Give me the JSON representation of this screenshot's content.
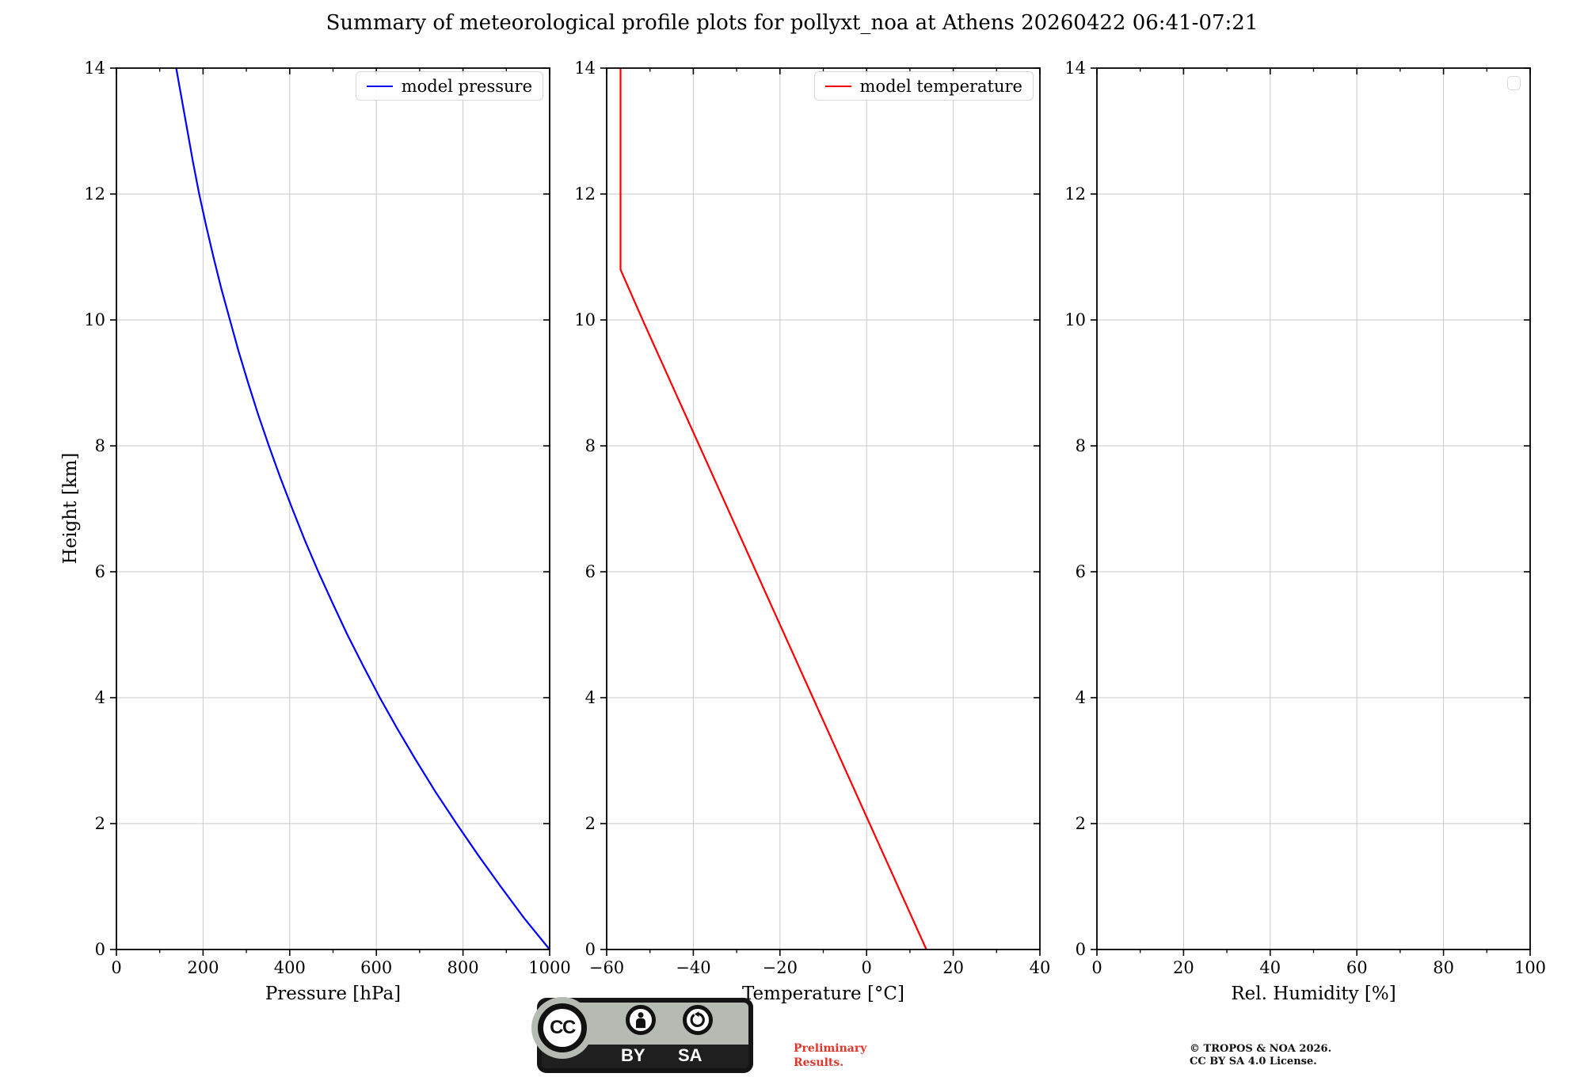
{
  "title": "Summary of meteorological profile plots for pollyxt_noa at Athens 20260422 06:41-07:21",
  "colors": {
    "pressure_line": "#0000ff",
    "temperature_line": "#ff0000",
    "gridline": "#c9c9c9",
    "spine": "#000000",
    "preliminary_text": "#e2352b"
  },
  "chart_data": [
    {
      "type": "line",
      "xlabel": "Pressure [hPa]",
      "ylabel": "Height [km]",
      "xlim": [
        0,
        1000
      ],
      "ylim": [
        0,
        14
      ],
      "xticks": [
        0,
        200,
        400,
        600,
        800,
        1000
      ],
      "yticks": [
        0,
        2,
        4,
        6,
        8,
        10,
        12,
        14
      ],
      "grid": true,
      "legend_position": "upper right",
      "series": [
        {
          "name": "model pressure",
          "color": "#0000ff",
          "points": [
            [
              1000,
              0
            ],
            [
              941,
              0.5
            ],
            [
              887,
              1
            ],
            [
              835,
              1.5
            ],
            [
              785,
              2
            ],
            [
              737,
              2.5
            ],
            [
              692,
              3
            ],
            [
              649,
              3.5
            ],
            [
              608,
              4
            ],
            [
              570,
              4.5
            ],
            [
              533,
              5
            ],
            [
              499,
              5.5
            ],
            [
              466,
              6
            ],
            [
              435,
              6.5
            ],
            [
              406,
              7
            ],
            [
              378,
              7.5
            ],
            [
              352,
              8
            ],
            [
              327,
              8.5
            ],
            [
              304,
              9
            ],
            [
              282,
              9.5
            ],
            [
              262,
              10
            ],
            [
              242,
              10.5
            ],
            [
              224,
              11
            ],
            [
              207,
              11.5
            ],
            [
              191,
              12
            ],
            [
              177,
              12.5
            ],
            [
              164,
              13
            ],
            [
              151,
              13.5
            ],
            [
              138,
              14
            ]
          ]
        }
      ]
    },
    {
      "type": "line",
      "xlabel": "Temperature [°C]",
      "ylabel": "",
      "xlim": [
        -60,
        40
      ],
      "ylim": [
        0,
        14
      ],
      "xticks": [
        -60,
        -40,
        -20,
        0,
        20,
        40
      ],
      "yticks": [
        0,
        2,
        4,
        6,
        8,
        10,
        12,
        14
      ],
      "grid": true,
      "legend_position": "upper right",
      "series": [
        {
          "name": "model temperature",
          "color": "#ff0000",
          "points": [
            [
              13.8,
              0
            ],
            [
              0.7,
              2
            ],
            [
              -12.4,
              4
            ],
            [
              -25.5,
              6
            ],
            [
              -38.6,
              8
            ],
            [
              -51.7,
              10
            ],
            [
              -56.8,
              10.8
            ],
            [
              -56.8,
              12
            ],
            [
              -56.8,
              14
            ]
          ]
        }
      ]
    },
    {
      "type": "line",
      "xlabel": "Rel. Humidity [%]",
      "ylabel": "",
      "xlim": [
        0,
        100
      ],
      "ylim": [
        0,
        14
      ],
      "xticks": [
        0,
        20,
        40,
        60,
        80,
        100
      ],
      "yticks": [
        0,
        2,
        4,
        6,
        8,
        10,
        12,
        14
      ],
      "grid": true,
      "legend_position": "upper right",
      "series": []
    }
  ],
  "footer": {
    "license_badge": {
      "cc": "CC",
      "by": "BY",
      "sa": "SA"
    },
    "preliminary_line1": "Preliminary",
    "preliminary_line2": "Results.",
    "copyright_line1": "© TROPOS & NOA 2026.",
    "copyright_line2": "CC BY SA 4.0 License."
  }
}
